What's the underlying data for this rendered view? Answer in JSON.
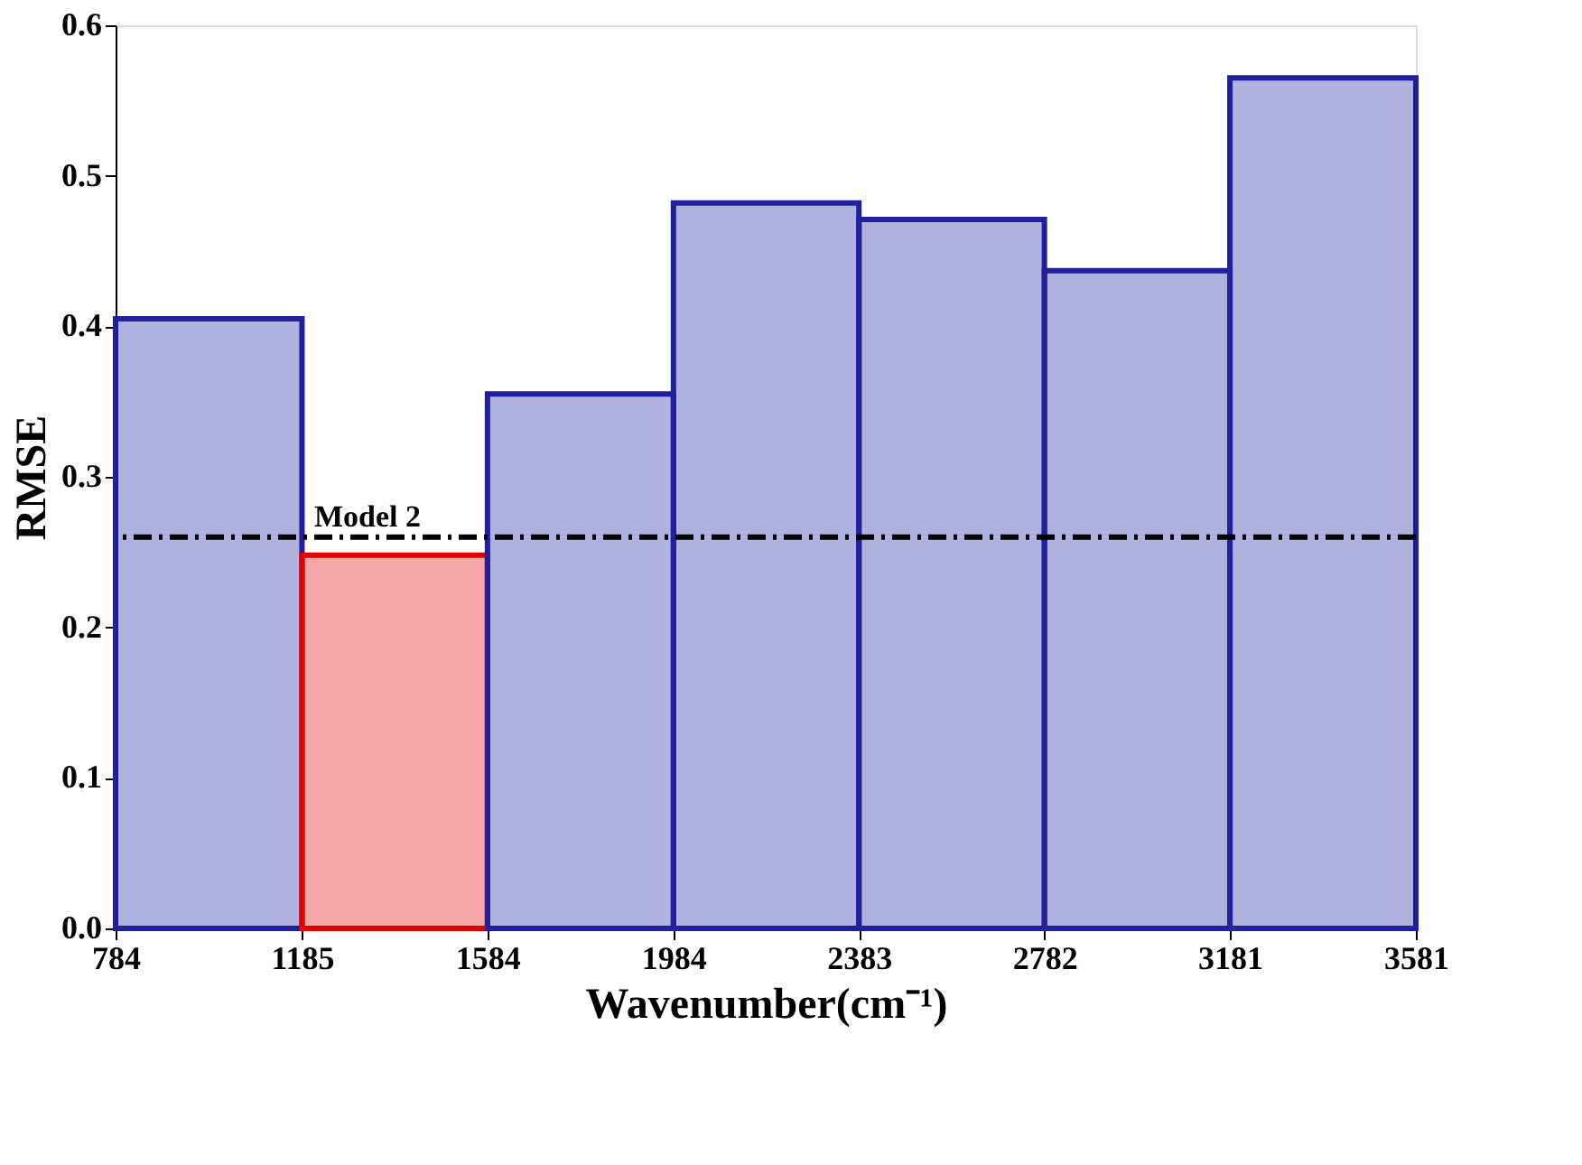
{
  "chart_data": {
    "type": "histogram",
    "xlabel": "Wavenumber(cm⁻¹)",
    "ylabel": "RMSE",
    "bins": [
      784,
      1185,
      1584,
      1984,
      2383,
      2782,
      3181,
      3581
    ],
    "values": [
      0.405,
      0.248,
      0.355,
      0.482,
      0.471,
      0.437,
      0.565
    ],
    "colors": [
      "#1f1fa0",
      "#e00000",
      "#1f1fa0",
      "#1f1fa0",
      "#1f1fa0",
      "#1f1fa0",
      "#1f1fa0"
    ],
    "xlim": [
      784,
      3581
    ],
    "xticks": [
      784,
      1185,
      1584,
      1984,
      2383,
      2782,
      3181,
      3581
    ],
    "ylim": [
      0,
      0.6
    ],
    "yticks": [
      {
        "value": 0,
        "label": "0.0"
      },
      0.1,
      0.2,
      0.3,
      0.4,
      0.5,
      0.6
    ],
    "ref_lines": [
      {
        "axis": "y",
        "value": 0.26,
        "label": "Model 2",
        "color": "#000000",
        "line_style": "dashdot"
      }
    ],
    "grid": false
  }
}
